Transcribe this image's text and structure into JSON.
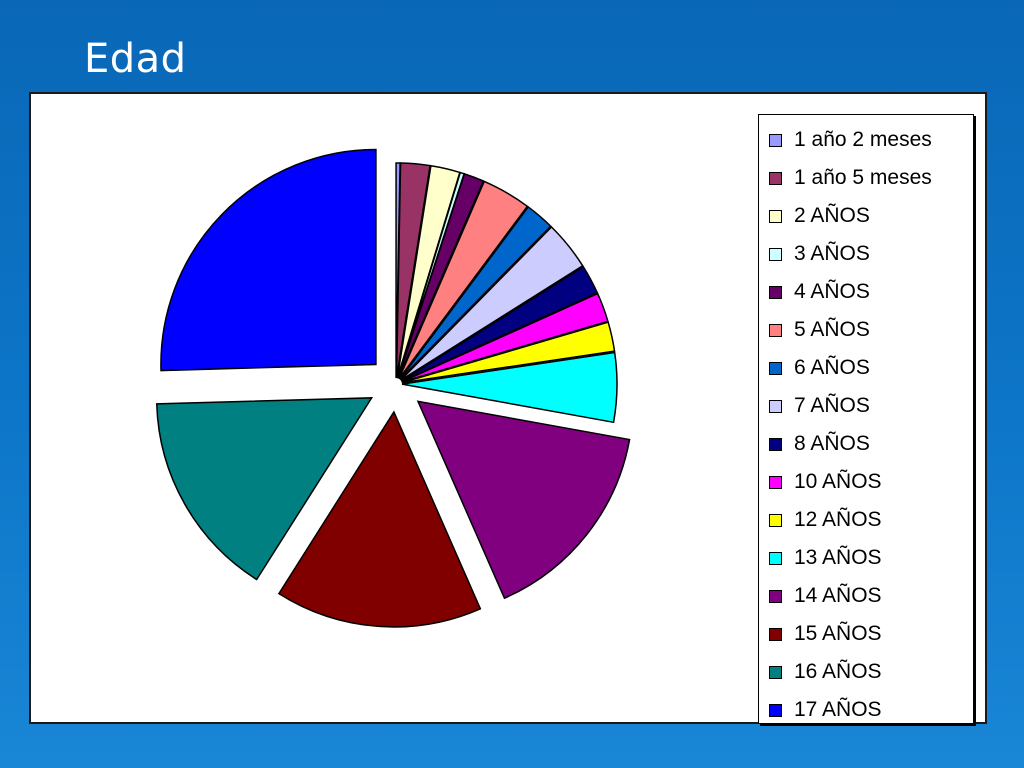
{
  "slide": {
    "title": "Edad"
  },
  "chart_data": {
    "type": "pie",
    "exploded": true,
    "legend_position": "right",
    "categories": [
      "1 año 2 meses",
      "1 año 5 meses",
      "2 AÑOS",
      "3 AÑOS",
      "4 AÑOS",
      "5 AÑOS",
      "6 AÑOS",
      "7 AÑOS",
      "8 AÑOS",
      "10 AÑOS",
      "12 AÑOS",
      "13 AÑOS",
      "14 AÑOS",
      "15 AÑOS",
      "16 AÑOS",
      "17 AÑOS"
    ],
    "values": [
      0.3,
      2.2,
      2.2,
      0.3,
      1.5,
      3.7,
      2.2,
      3.7,
      2.2,
      2.2,
      2.2,
      5.2,
      15.6,
      15.6,
      15.6,
      25.5
    ],
    "colors": [
      "#9999ff",
      "#993366",
      "#ffffcc",
      "#ccffff",
      "#660066",
      "#ff8080",
      "#0066cc",
      "#ccccff",
      "#000080",
      "#ff00ff",
      "#ffff00",
      "#00ffff",
      "#800080",
      "#800000",
      "#008080",
      "#0000ff"
    ]
  }
}
